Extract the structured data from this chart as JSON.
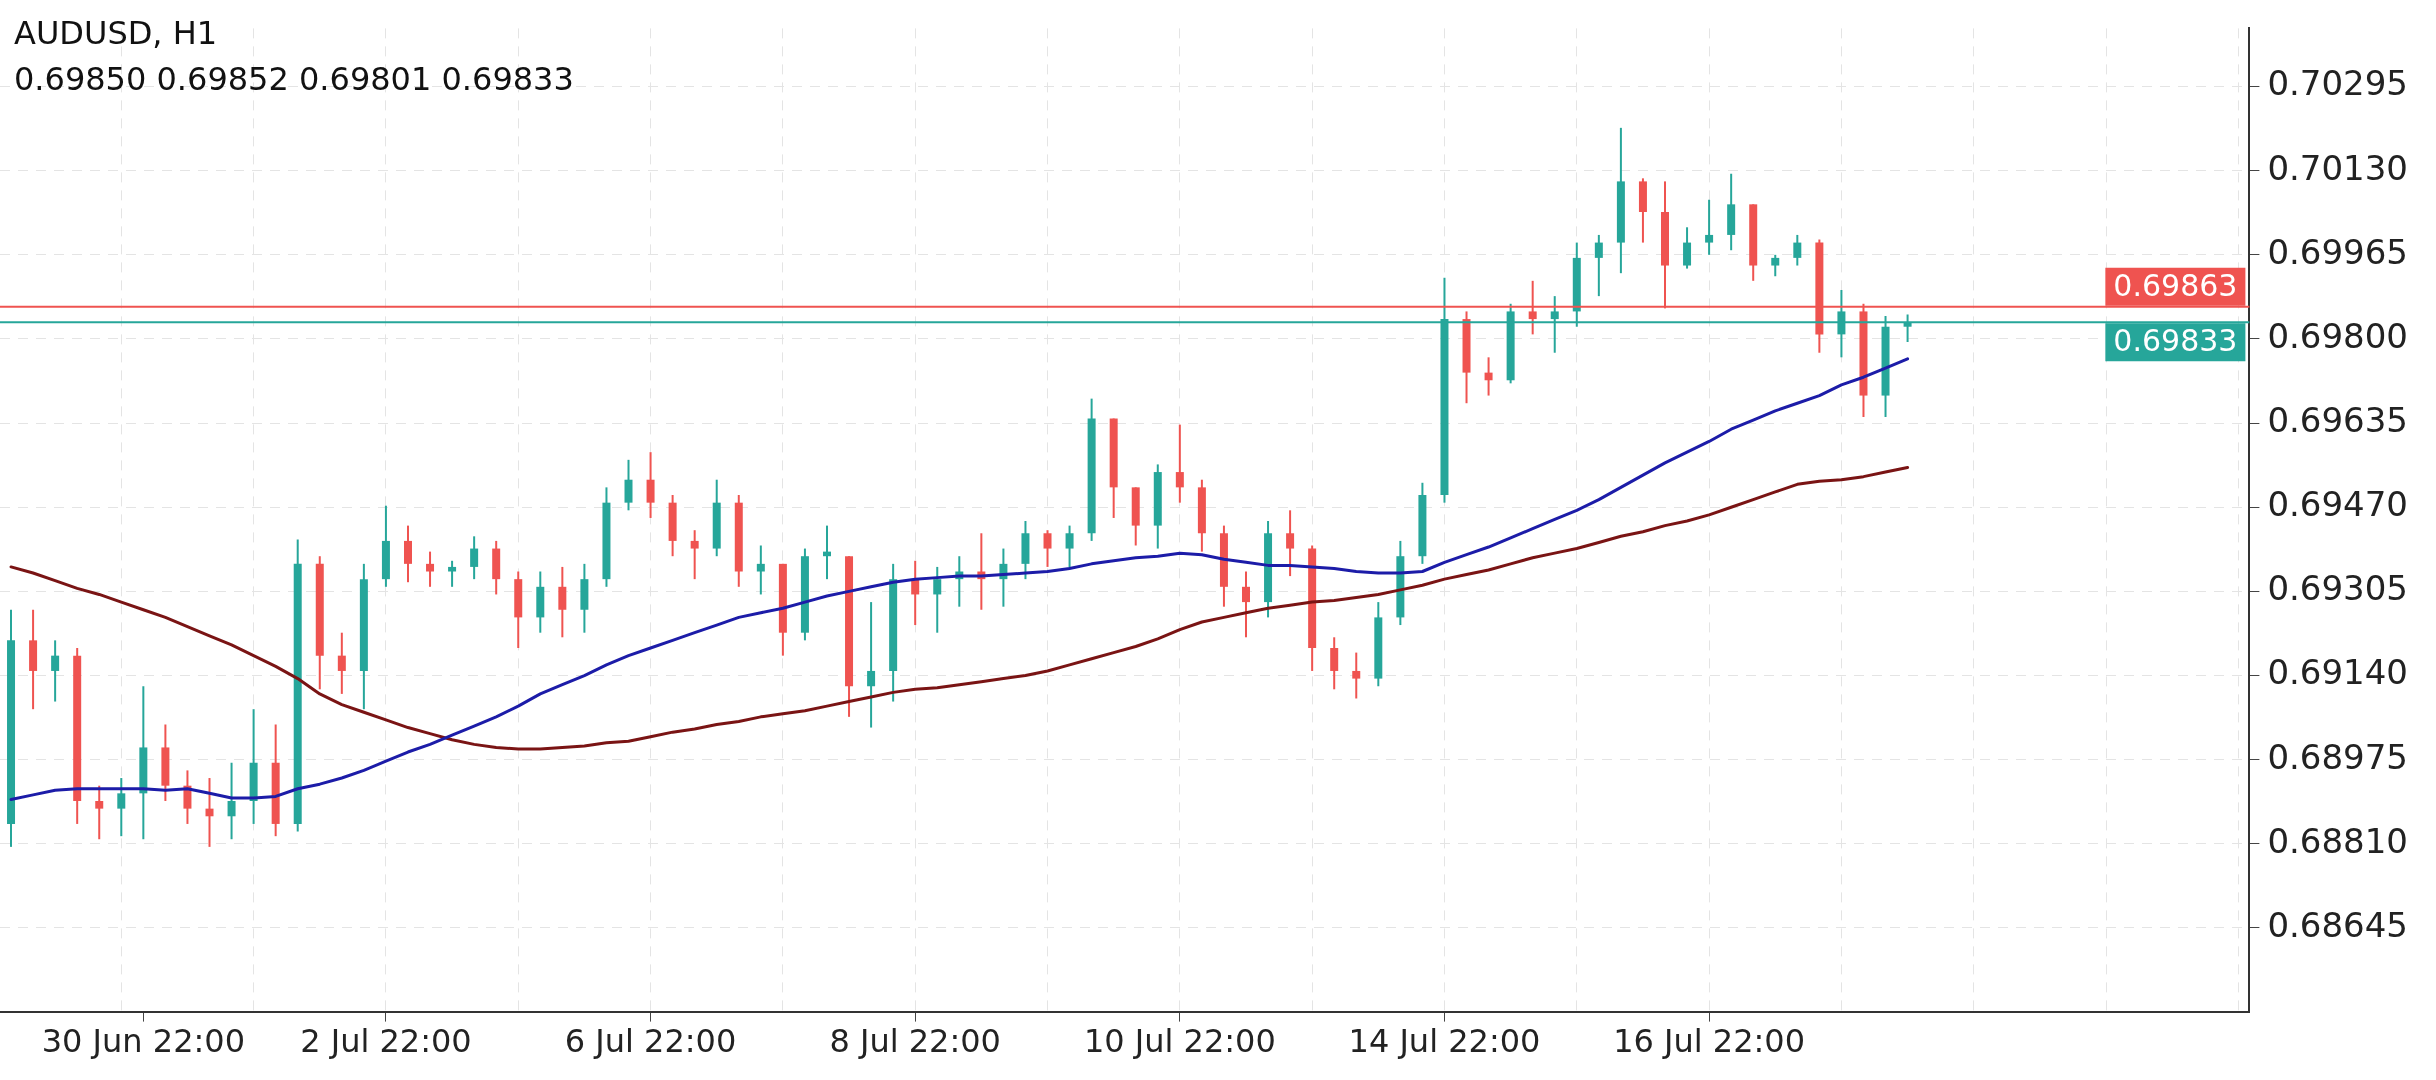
{
  "chart_data": {
    "type": "candlestick",
    "title": "AUDUSD, H1",
    "subtitle": "0.69850 0.69852 0.69801 0.69833",
    "categories": [
      null,
      null,
      null,
      null,
      null,
      null,
      "30 Jun 22:00",
      null,
      null,
      null,
      null,
      null,
      null,
      null,
      null,
      null,
      null,
      "2 Jul 22:00",
      null,
      null,
      null,
      null,
      null,
      null,
      null,
      null,
      null,
      null,
      null,
      "6 Jul 22:00",
      null,
      null,
      null,
      null,
      null,
      null,
      null,
      null,
      null,
      null,
      null,
      "8 Jul 22:00",
      null,
      null,
      null,
      null,
      null,
      null,
      null,
      null,
      null,
      null,
      null,
      "10 Jul 22:00",
      null,
      null,
      null,
      null,
      null,
      null,
      null,
      null,
      null,
      null,
      null,
      "14 Jul 22:00",
      null,
      null,
      null,
      null,
      null,
      null,
      null,
      null,
      null,
      null,
      null,
      "16 Jul 22:00",
      null,
      null,
      null,
      null,
      null,
      null,
      null,
      null,
      null,
      null,
      null,
      null,
      null,
      null,
      null,
      null,
      null,
      null,
      null,
      null,
      null,
      null,
      null,
      null
    ],
    "ohlc": [
      [
        0.68849,
        0.69269,
        0.68804,
        0.69209
      ],
      [
        0.69209,
        0.69269,
        0.69074,
        0.69149
      ],
      [
        0.69149,
        0.69209,
        0.69089,
        0.69179
      ],
      [
        0.69179,
        0.69194,
        0.68849,
        0.68894
      ],
      [
        0.68894,
        0.68924,
        0.68819,
        0.68879
      ],
      [
        0.68879,
        0.68939,
        0.68825,
        0.68909
      ],
      [
        0.68909,
        0.69119,
        0.68819,
        0.68999
      ],
      [
        0.68999,
        0.69044,
        0.68894,
        0.68924
      ],
      [
        0.68924,
        0.68954,
        0.68849,
        0.68879
      ],
      [
        0.68879,
        0.68939,
        0.68804,
        0.68864
      ],
      [
        0.68864,
        0.68969,
        0.68819,
        0.68894
      ],
      [
        0.68894,
        0.69074,
        0.68849,
        0.68969
      ],
      [
        0.68969,
        0.69044,
        0.68825,
        0.68849
      ],
      [
        0.68849,
        0.69407,
        0.68834,
        0.69359
      ],
      [
        0.69359,
        0.69374,
        0.69113,
        0.69179
      ],
      [
        0.69179,
        0.69224,
        0.69104,
        0.69149
      ],
      [
        0.69149,
        0.69359,
        0.69074,
        0.69329
      ],
      [
        0.69329,
        0.69473,
        0.69314,
        0.69404
      ],
      [
        0.69404,
        0.69434,
        0.69323,
        0.69359
      ],
      [
        0.69359,
        0.69383,
        0.69314,
        0.69344
      ],
      [
        0.69344,
        0.69365,
        0.69314,
        0.69353
      ],
      [
        0.69353,
        0.69413,
        0.69329,
        0.69389
      ],
      [
        0.69389,
        0.69404,
        0.69299,
        0.69329
      ],
      [
        0.69329,
        0.69344,
        0.69194,
        0.69254
      ],
      [
        0.69254,
        0.69344,
        0.69224,
        0.69314
      ],
      [
        0.69314,
        0.69353,
        0.69215,
        0.69269
      ],
      [
        0.69269,
        0.69359,
        0.69224,
        0.69329
      ],
      [
        0.69329,
        0.69509,
        0.69314,
        0.69479
      ],
      [
        0.69479,
        0.69563,
        0.69464,
        0.69524
      ],
      [
        0.69524,
        0.69578,
        0.69449,
        0.69479
      ],
      [
        0.69479,
        0.69494,
        0.69374,
        0.69404
      ],
      [
        0.69404,
        0.69425,
        0.69329,
        0.69389
      ],
      [
        0.69389,
        0.69524,
        0.69374,
        0.69479
      ],
      [
        0.69479,
        0.69494,
        0.69314,
        0.69344
      ],
      [
        0.69344,
        0.69395,
        0.69299,
        0.69359
      ],
      [
        0.69359,
        0.69359,
        0.69179,
        0.69224
      ],
      [
        0.69224,
        0.69389,
        0.69209,
        0.69374
      ],
      [
        0.69374,
        0.69434,
        0.69329,
        0.69383
      ],
      [
        0.69374,
        0.69374,
        0.69059,
        0.69119
      ],
      [
        0.69119,
        0.69284,
        0.69038,
        0.69149
      ],
      [
        0.69149,
        0.69359,
        0.69089,
        0.69329
      ],
      [
        0.69329,
        0.69365,
        0.69239,
        0.69299
      ],
      [
        0.69299,
        0.69353,
        0.69224,
        0.69329
      ],
      [
        0.69329,
        0.69374,
        0.69275,
        0.69344
      ],
      [
        0.69344,
        0.69419,
        0.69269,
        0.69329
      ],
      [
        0.69329,
        0.69389,
        0.69275,
        0.69359
      ],
      [
        0.69359,
        0.69443,
        0.69329,
        0.69419
      ],
      [
        0.69419,
        0.69425,
        0.69353,
        0.69389
      ],
      [
        0.69389,
        0.69434,
        0.6935,
        0.69419
      ],
      [
        0.69419,
        0.69683,
        0.69404,
        0.69644
      ],
      [
        0.69644,
        0.69644,
        0.69449,
        0.69509
      ],
      [
        0.69509,
        0.69509,
        0.69395,
        0.69434
      ],
      [
        0.69434,
        0.69554,
        0.69389,
        0.69539
      ],
      [
        0.69539,
        0.69632,
        0.69479,
        0.69509
      ],
      [
        0.69509,
        0.69524,
        0.69383,
        0.69419
      ],
      [
        0.69419,
        0.69434,
        0.69275,
        0.69314
      ],
      [
        0.69314,
        0.69344,
        0.69215,
        0.69284
      ],
      [
        0.69284,
        0.69443,
        0.69254,
        0.69419
      ],
      [
        0.69419,
        0.69464,
        0.69335,
        0.69389
      ],
      [
        0.69389,
        0.69395,
        0.69149,
        0.69194
      ],
      [
        0.69194,
        0.69215,
        0.69113,
        0.69149
      ],
      [
        0.69149,
        0.69185,
        0.69095,
        0.69134
      ],
      [
        0.69134,
        0.69284,
        0.69119,
        0.69254
      ],
      [
        0.69254,
        0.69404,
        0.69239,
        0.69374
      ],
      [
        0.69374,
        0.69518,
        0.69359,
        0.69494
      ],
      [
        0.69494,
        0.6992,
        0.69479,
        0.69839
      ],
      [
        0.69839,
        0.69854,
        0.69674,
        0.69734
      ],
      [
        0.69734,
        0.69764,
        0.69689,
        0.69719
      ],
      [
        0.69719,
        0.69869,
        0.69713,
        0.69854
      ],
      [
        0.69854,
        0.69914,
        0.69809,
        0.69839
      ],
      [
        0.69839,
        0.69884,
        0.69773,
        0.69854
      ],
      [
        0.69854,
        0.69989,
        0.69824,
        0.69959
      ],
      [
        0.69959,
        0.70004,
        0.69884,
        0.69989
      ],
      [
        0.69989,
        0.70214,
        0.69929,
        0.70109
      ],
      [
        0.70109,
        0.70115,
        0.69989,
        0.70049
      ],
      [
        0.70049,
        0.70109,
        0.6986,
        0.69944
      ],
      [
        0.69944,
        0.70019,
        0.69938,
        0.69989
      ],
      [
        0.69989,
        0.70073,
        0.69965,
        0.70004
      ],
      [
        0.70004,
        0.70124,
        0.69974,
        0.70064
      ],
      [
        0.70064,
        0.70064,
        0.69914,
        0.69944
      ],
      [
        0.69944,
        0.69965,
        0.69923,
        0.69959
      ],
      [
        0.69959,
        0.70004,
        0.69944,
        0.69989
      ],
      [
        0.69989,
        0.69995,
        0.69773,
        0.69809
      ],
      [
        0.69809,
        0.69896,
        0.69764,
        0.69854
      ],
      [
        0.69854,
        0.69869,
        0.69647,
        0.69689
      ],
      [
        0.69689,
        0.69845,
        0.69647,
        0.69824
      ],
      [
        0.69824,
        0.69848,
        0.69794,
        0.69833
      ],
      null,
      null,
      null,
      null,
      null,
      null,
      null,
      null,
      null,
      null,
      null,
      null,
      null,
      null,
      null
    ],
    "colors": [
      "#26a69a",
      "#ef5350",
      "#26a69a",
      "#ef5350",
      "#ef5350",
      "#26a69a",
      "#26a69a",
      "#ef5350",
      "#ef5350",
      "#ef5350",
      "#26a69a",
      "#26a69a",
      "#ef5350",
      "#26a69a",
      "#ef5350",
      "#ef5350",
      "#26a69a",
      "#26a69a",
      "#ef5350",
      "#ef5350",
      "#26a69a",
      "#26a69a",
      "#ef5350",
      "#ef5350",
      "#26a69a",
      "#ef5350",
      "#26a69a",
      "#26a69a",
      "#26a69a",
      "#ef5350",
      "#ef5350",
      "#ef5350",
      "#26a69a",
      "#ef5350",
      "#26a69a",
      "#ef5350",
      "#26a69a",
      "#26a69a",
      "#ef5350",
      "#26a69a",
      "#26a69a",
      "#ef5350",
      "#26a69a",
      "#26a69a",
      "#ef5350",
      "#26a69a",
      "#26a69a",
      "#ef5350",
      "#26a69a",
      "#26a69a",
      "#ef5350",
      "#ef5350",
      "#26a69a",
      "#ef5350",
      "#ef5350",
      "#ef5350",
      "#ef5350",
      "#26a69a",
      "#ef5350",
      "#ef5350",
      "#ef5350",
      "#ef5350",
      "#26a69a",
      "#26a69a",
      "#26a69a",
      "#26a69a",
      "#ef5350",
      "#ef5350",
      "#26a69a",
      "#ef5350",
      "#26a69a",
      "#26a69a",
      "#26a69a",
      "#26a69a",
      "#ef5350",
      "#ef5350",
      "#26a69a",
      "#26a69a",
      "#26a69a",
      "#ef5350",
      "#26a69a",
      "#26a69a",
      "#ef5350",
      "#26a69a",
      "#ef5350",
      "#26a69a",
      "#26a69a",
      null,
      null,
      null,
      null,
      null,
      null,
      null,
      null,
      null,
      null,
      null,
      null,
      null,
      null,
      null
    ],
    "series": [
      {
        "type": "line",
        "color": "#1c1ca8",
        "values": [
          0.68897,
          0.68906,
          0.68915,
          0.68918,
          0.68918,
          0.68918,
          0.68918,
          0.68915,
          0.68918,
          0.68909,
          0.689,
          0.689,
          0.68903,
          0.68918,
          0.68927,
          0.68939,
          0.68954,
          0.68972,
          0.6899,
          0.69005,
          0.69023,
          0.69041,
          0.69059,
          0.6908,
          0.69104,
          0.69122,
          0.6914,
          0.69161,
          0.69179,
          0.69194,
          0.69209,
          0.69224,
          0.69239,
          0.69254,
          0.69263,
          0.69272,
          0.69284,
          0.69296,
          0.69305,
          0.69314,
          0.69323,
          0.69329,
          0.69332,
          0.69335,
          0.69335,
          0.69338,
          0.69341,
          0.69344,
          0.6935,
          0.69359,
          0.69365,
          0.69371,
          0.69374,
          0.6938,
          0.69377,
          0.69368,
          0.69362,
          0.69356,
          0.69356,
          0.69353,
          0.6935,
          0.69344,
          0.69341,
          0.69341,
          0.69344,
          0.69362,
          0.69377,
          0.69392,
          0.6941,
          0.69428,
          0.69446,
          0.69464,
          0.69485,
          0.69509,
          0.69533,
          0.69557,
          0.69578,
          0.69599,
          0.69623,
          0.69641,
          0.69659,
          0.69674,
          0.69689,
          0.6971,
          0.69725,
          0.69743,
          0.69761,
          null,
          null,
          null,
          null,
          null,
          null,
          null,
          null,
          null,
          null,
          null,
          null,
          null,
          null,
          null
        ]
      },
      {
        "type": "line",
        "color": "#7a1414",
        "values": [
          0.69353,
          0.69341,
          0.69326,
          0.69311,
          0.69299,
          0.69284,
          0.69269,
          0.69254,
          0.69236,
          0.69218,
          0.692,
          0.69179,
          0.69158,
          0.69134,
          0.69104,
          0.69083,
          0.69068,
          0.69053,
          0.69038,
          0.69026,
          0.69014,
          0.69005,
          0.68999,
          0.68996,
          0.68996,
          0.68999,
          0.69002,
          0.69008,
          0.69011,
          0.6902,
          0.69029,
          0.69035,
          0.69044,
          0.6905,
          0.69059,
          0.69065,
          0.69071,
          0.6908,
          0.69089,
          0.69098,
          0.69107,
          0.69113,
          0.69116,
          0.69122,
          0.69128,
          0.69134,
          0.6914,
          0.69149,
          0.69161,
          0.69173,
          0.69185,
          0.69197,
          0.69212,
          0.6923,
          0.69245,
          0.69254,
          0.69263,
          0.69272,
          0.69278,
          0.69284,
          0.69287,
          0.69293,
          0.69299,
          0.69308,
          0.69317,
          0.69329,
          0.69338,
          0.69347,
          0.69359,
          0.69371,
          0.6938,
          0.69389,
          0.69401,
          0.69413,
          0.69422,
          0.69434,
          0.69443,
          0.69455,
          0.6947,
          0.69485,
          0.695,
          0.69515,
          0.69521,
          0.69524,
          0.6953,
          0.69539,
          0.69548,
          null,
          null,
          null,
          null,
          null,
          null,
          null,
          null,
          null,
          null,
          null,
          null,
          null,
          null,
          null
        ]
      }
    ],
    "ylim": [
      0.68481,
      0.70409
    ],
    "yticks": [
      0.70295,
      {
        "value": 0.7013,
        "label": "0.70130"
      },
      0.69965,
      {
        "value": 0.698,
        "label": "0.69800"
      },
      0.69635,
      {
        "value": 0.6947,
        "label": "0.69470"
      },
      0.69305,
      {
        "value": 0.6914,
        "label": "0.69140"
      },
      0.68975,
      {
        "value": 0.6881,
        "label": "0.68810"
      },
      0.68645
    ],
    "grid": true,
    "legend": false,
    "marker": "none",
    "ref_lines": [
      {
        "axis": "y",
        "value": 0.69863,
        "label": "0.69863",
        "color": "#ef5350"
      },
      {
        "axis": "y",
        "value": 0.69833,
        "label": "0.69833",
        "color": "#26a69a"
      }
    ]
  }
}
